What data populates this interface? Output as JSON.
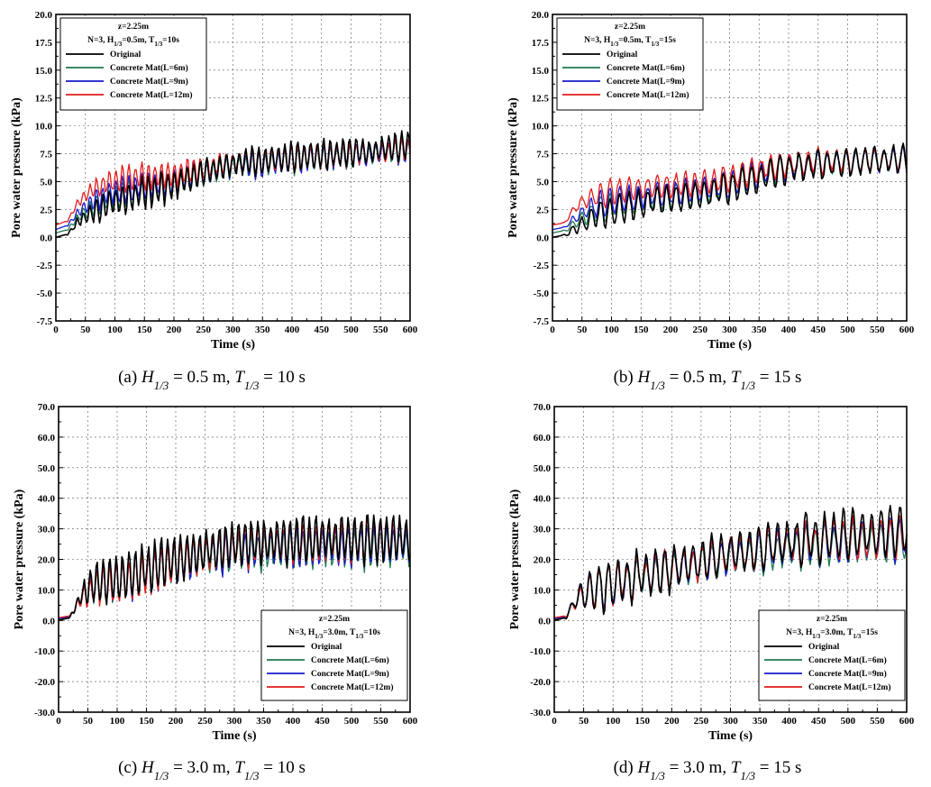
{
  "legend_series": [
    "Original",
    "Concrete Mat(L=6m)",
    "Concrete Mat(L=9m)",
    "Concrete Mat(L=12m)"
  ],
  "series_colors": {
    "Original": "#000000",
    "Concrete Mat(L=6m)": "#1f7a4f",
    "Concrete Mat(L=9m)": "#1a1acc",
    "Concrete Mat(L=12m)": "#e01b1b"
  },
  "axis": {
    "xlabel": "Time (s)",
    "ylabel": "Pore water pressure (kPa)"
  },
  "chart_data": [
    {
      "type": "line",
      "panel": "a",
      "caption": "(a) H1/3 = 0.5 m, T1/3 = 10 s",
      "legend_title": "z=2.25m",
      "legend_subtitle": "N=3, H1/3=0.5m, T1/3=10s",
      "legend_position": "top-left",
      "xlabel": "Time (s)",
      "ylabel": "Pore water pressure (kPa)",
      "xlim": [
        0,
        600
      ],
      "ylim": [
        -7.5,
        20
      ],
      "xticks": [
        0,
        50,
        100,
        150,
        200,
        250,
        300,
        350,
        400,
        450,
        500,
        550,
        600
      ],
      "yticks": [
        "-7.5",
        "-5.0",
        "-2.5",
        "0.0",
        "2.5",
        "5.0",
        "7.5",
        "10.0",
        "12.5",
        "15.0",
        "17.5",
        "20.0"
      ],
      "grid": true,
      "series": [
        {
          "name": "Original",
          "x": [
            0,
            20,
            40,
            60,
            80,
            100,
            150,
            200,
            250,
            300,
            350,
            400,
            450,
            500,
            550,
            600
          ],
          "y": [
            0.0,
            0.3,
            1.5,
            2.2,
            2.8,
            3.2,
            4.0,
            4.6,
            5.8,
            6.6,
            6.9,
            7.2,
            7.4,
            7.6,
            7.9,
            8.3
          ]
        },
        {
          "name": "Concrete Mat(L=6m)",
          "x": [
            0,
            20,
            40,
            60,
            80,
            100,
            150,
            200,
            250,
            300,
            350,
            400,
            450,
            500,
            550,
            600
          ],
          "y": [
            0.4,
            0.7,
            1.9,
            2.6,
            3.2,
            3.6,
            4.3,
            4.7,
            5.7,
            6.3,
            6.5,
            6.9,
            7.1,
            7.3,
            7.5,
            7.8
          ]
        },
        {
          "name": "Concrete Mat(L=9m)",
          "x": [
            0,
            20,
            40,
            60,
            80,
            100,
            150,
            200,
            250,
            300,
            350,
            400,
            450,
            500,
            550,
            600
          ],
          "y": [
            0.7,
            1.1,
            2.4,
            3.1,
            3.7,
            4.1,
            4.7,
            5.0,
            5.9,
            6.5,
            6.6,
            7.0,
            7.2,
            7.4,
            7.6,
            7.9
          ]
        },
        {
          "name": "Concrete Mat(L=12m)",
          "x": [
            0,
            20,
            40,
            60,
            80,
            100,
            150,
            200,
            250,
            300,
            350,
            400,
            450,
            500,
            550,
            600
          ],
          "y": [
            1.1,
            1.5,
            3.3,
            4.2,
            4.7,
            5.1,
            5.4,
            5.6,
            6.3,
            6.7,
            6.8,
            7.1,
            7.3,
            7.5,
            7.7,
            8.0
          ]
        }
      ]
    },
    {
      "type": "line",
      "panel": "b",
      "caption": "(b) H1/3 = 0.5 m, T1/3 = 15 s",
      "legend_title": "z=2.25m",
      "legend_subtitle": "N=3, H1/3=0.5m, T1/3=15s",
      "legend_position": "top-left",
      "xlabel": "Time (s)",
      "ylabel": "Pore water pressure (kPa)",
      "xlim": [
        0,
        600
      ],
      "ylim": [
        -7.5,
        20
      ],
      "xticks": [
        0,
        50,
        100,
        150,
        200,
        250,
        300,
        350,
        400,
        450,
        500,
        550,
        600
      ],
      "yticks": [
        "-7.5",
        "-5.0",
        "-2.5",
        "0.0",
        "2.5",
        "5.0",
        "7.5",
        "10.0",
        "12.5",
        "15.0",
        "17.5",
        "20.0"
      ],
      "grid": true,
      "series": [
        {
          "name": "Original",
          "x": [
            0,
            20,
            40,
            60,
            80,
            100,
            150,
            200,
            250,
            300,
            350,
            400,
            450,
            500,
            550,
            600
          ],
          "y": [
            0.0,
            0.2,
            0.8,
            1.5,
            2.0,
            2.4,
            3.0,
            3.4,
            3.8,
            4.4,
            5.4,
            6.2,
            6.5,
            6.7,
            6.9,
            7.0
          ]
        },
        {
          "name": "Concrete Mat(L=6m)",
          "x": [
            0,
            20,
            40,
            60,
            80,
            100,
            150,
            200,
            250,
            300,
            350,
            400,
            450,
            500,
            550,
            600
          ],
          "y": [
            0.4,
            0.6,
            1.3,
            2.0,
            2.5,
            2.9,
            3.4,
            3.7,
            4.0,
            4.6,
            5.6,
            6.3,
            6.6,
            6.7,
            6.9,
            7.0
          ]
        },
        {
          "name": "Concrete Mat(L=9m)",
          "x": [
            0,
            20,
            40,
            60,
            80,
            100,
            150,
            200,
            250,
            300,
            350,
            400,
            450,
            500,
            550,
            600
          ],
          "y": [
            0.7,
            0.9,
            1.8,
            2.5,
            2.9,
            3.3,
            3.7,
            4.0,
            4.3,
            4.8,
            5.8,
            6.4,
            6.7,
            6.8,
            6.9,
            7.0
          ]
        },
        {
          "name": "Concrete Mat(L=12m)",
          "x": [
            0,
            20,
            40,
            60,
            80,
            100,
            150,
            200,
            250,
            300,
            350,
            400,
            450,
            500,
            550,
            600
          ],
          "y": [
            1.1,
            1.3,
            2.8,
            3.4,
            3.8,
            4.1,
            4.4,
            4.6,
            4.9,
            5.3,
            6.1,
            6.6,
            6.8,
            6.9,
            7.0,
            7.1
          ]
        }
      ]
    },
    {
      "type": "line",
      "panel": "c",
      "caption": "(c) H1/3 = 3.0 m, T1/3 = 10 s",
      "legend_title": "z=2.25m",
      "legend_subtitle": "N=3, H1/3=3.0m, T1/3=10s",
      "legend_position": "bottom-right",
      "xlabel": "Time (s)",
      "ylabel": "Pore water pressure (kPa)",
      "xlim": [
        0,
        600
      ],
      "ylim": [
        -30,
        70
      ],
      "xticks": [
        0,
        50,
        100,
        150,
        200,
        250,
        300,
        350,
        400,
        450,
        500,
        550,
        600
      ],
      "yticks": [
        "-30.0",
        "-20.0",
        "-10.0",
        "0.0",
        "10.0",
        "20.0",
        "30.0",
        "40.0",
        "50.0",
        "60.0",
        "70.0"
      ],
      "grid": true,
      "series": [
        {
          "name": "Original",
          "x": [
            0,
            20,
            40,
            60,
            80,
            100,
            150,
            200,
            250,
            300,
            350,
            400,
            450,
            500,
            550,
            600
          ],
          "y": [
            0.0,
            1.0,
            9.0,
            12.0,
            13.0,
            14.0,
            17.0,
            20.0,
            23.0,
            25.0,
            26.0,
            26.5,
            26.8,
            27.0,
            27.0,
            27.0
          ]
        },
        {
          "name": "Concrete Mat(L=6m)",
          "x": [
            0,
            20,
            40,
            60,
            80,
            100,
            150,
            200,
            250,
            300,
            350,
            400,
            450,
            500,
            550,
            600
          ],
          "y": [
            0.4,
            1.2,
            8.0,
            11.0,
            12.0,
            13.0,
            15.5,
            18.5,
            21.0,
            22.5,
            23.0,
            23.5,
            23.5,
            24.0,
            24.0,
            24.0
          ]
        },
        {
          "name": "Concrete Mat(L=9m)",
          "x": [
            0,
            20,
            40,
            60,
            80,
            100,
            150,
            200,
            250,
            300,
            350,
            400,
            450,
            500,
            550,
            600
          ],
          "y": [
            0.6,
            1.4,
            8.2,
            11.2,
            12.2,
            13.2,
            15.8,
            19.0,
            21.6,
            23.2,
            23.8,
            24.2,
            24.5,
            24.8,
            25.0,
            25.0
          ]
        },
        {
          "name": "Concrete Mat(L=12m)",
          "x": [
            0,
            20,
            40,
            60,
            80,
            100,
            150,
            200,
            250,
            300,
            350,
            400,
            450,
            500,
            550,
            600
          ],
          "y": [
            0.9,
            1.6,
            7.5,
            10.5,
            11.5,
            12.5,
            15.0,
            19.0,
            22.0,
            24.0,
            25.0,
            25.5,
            26.0,
            26.0,
            26.5,
            26.5
          ]
        }
      ]
    },
    {
      "type": "line",
      "panel": "d",
      "caption": "(d) H1/3 = 3.0 m, T1/3 = 15 s",
      "legend_title": "z=2.25m",
      "legend_subtitle": "N=3, H1/3=3.0m, T1/3=15s",
      "legend_position": "bottom-right",
      "xlabel": "Time (s)",
      "ylabel": "Pore water pressure (kPa)",
      "xlim": [
        0,
        600
      ],
      "ylim": [
        -30,
        70
      ],
      "xticks": [
        0,
        50,
        100,
        150,
        200,
        250,
        300,
        350,
        400,
        450,
        500,
        550,
        600
      ],
      "yticks": [
        "-30.0",
        "-20.0",
        "-10.0",
        "0.0",
        "10.0",
        "20.0",
        "30.0",
        "40.0",
        "50.0",
        "60.0",
        "70.0"
      ],
      "grid": true,
      "series": [
        {
          "name": "Original",
          "x": [
            0,
            20,
            40,
            60,
            80,
            100,
            150,
            200,
            250,
            300,
            350,
            400,
            450,
            500,
            550,
            600
          ],
          "y": [
            0.0,
            1.0,
            8.0,
            10.0,
            11.0,
            12.0,
            15.0,
            17.0,
            20.0,
            22.0,
            24.0,
            26.0,
            27.0,
            28.0,
            29.0,
            30.0
          ]
        },
        {
          "name": "Concrete Mat(L=6m)",
          "x": [
            0,
            20,
            40,
            60,
            80,
            100,
            150,
            200,
            250,
            300,
            350,
            400,
            450,
            500,
            550,
            600
          ],
          "y": [
            0.4,
            1.2,
            7.5,
            9.5,
            10.5,
            11.5,
            14.0,
            16.0,
            18.5,
            20.5,
            22.0,
            23.5,
            24.0,
            25.0,
            25.5,
            26.0
          ]
        },
        {
          "name": "Concrete Mat(L=9m)",
          "x": [
            0,
            20,
            40,
            60,
            80,
            100,
            150,
            200,
            250,
            300,
            350,
            400,
            450,
            500,
            550,
            600
          ],
          "y": [
            0.6,
            1.4,
            7.8,
            9.8,
            10.8,
            11.8,
            14.5,
            16.5,
            19.0,
            21.0,
            23.0,
            24.5,
            25.5,
            26.0,
            26.5,
            27.0
          ]
        },
        {
          "name": "Concrete Mat(L=12m)",
          "x": [
            0,
            20,
            40,
            60,
            80,
            100,
            150,
            200,
            250,
            300,
            350,
            400,
            450,
            500,
            550,
            600
          ],
          "y": [
            0.9,
            1.6,
            7.0,
            9.5,
            10.5,
            11.5,
            14.5,
            16.5,
            19.0,
            21.5,
            23.5,
            25.0,
            26.0,
            26.5,
            27.0,
            27.5
          ]
        }
      ]
    }
  ]
}
